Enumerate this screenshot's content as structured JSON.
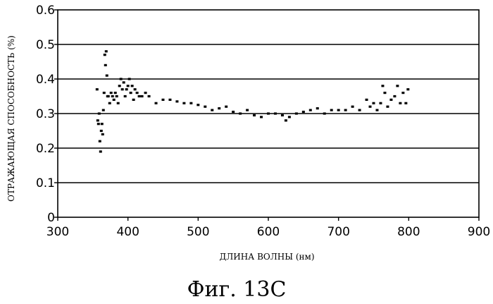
{
  "chart_data": {
    "type": "scatter",
    "caption": "Фиг. 13С",
    "xlabel": "ДЛИНА ВОЛНЫ (нм)",
    "ylabel": "ОТРАЖАЮЩАЯ СПОСОБНОСТЬ (%)",
    "xlim": [
      300,
      900
    ],
    "ylim": [
      0,
      0.6
    ],
    "xticks": [
      "300",
      "400",
      "500",
      "600",
      "700",
      "800",
      "900"
    ],
    "yticks": [
      "0",
      "0.1",
      "0.2",
      "0.3",
      "0.4",
      "0.5",
      "0.6"
    ],
    "grid": "horizontal",
    "series": [
      {
        "x": [
          356,
          357,
          358,
          359,
          360,
          361,
          362,
          363,
          364,
          365,
          366,
          367,
          368,
          369,
          370,
          371,
          372,
          374,
          376,
          378,
          380,
          382,
          384,
          386,
          388,
          390,
          392,
          394,
          396,
          398,
          400,
          402,
          404,
          406,
          408,
          410,
          413,
          416,
          420,
          425,
          430,
          440,
          450,
          460,
          470,
          480,
          490,
          500,
          510,
          520,
          530,
          540,
          550,
          560,
          570,
          580,
          590,
          600,
          610,
          620,
          625,
          630,
          640,
          650,
          660,
          670,
          680,
          690,
          700,
          710,
          720,
          730,
          740,
          745,
          750,
          755,
          760,
          763,
          766,
          770,
          775,
          780,
          784,
          788,
          792,
          796,
          799
        ],
        "y": [
          0.37,
          0.28,
          0.27,
          0.3,
          0.22,
          0.19,
          0.25,
          0.27,
          0.24,
          0.31,
          0.36,
          0.47,
          0.44,
          0.48,
          0.41,
          0.35,
          0.35,
          0.33,
          0.36,
          0.35,
          0.34,
          0.36,
          0.35,
          0.33,
          0.38,
          0.4,
          0.37,
          0.39,
          0.35,
          0.37,
          0.38,
          0.4,
          0.36,
          0.38,
          0.34,
          0.37,
          0.36,
          0.35,
          0.35,
          0.36,
          0.35,
          0.33,
          0.34,
          0.34,
          0.335,
          0.33,
          0.33,
          0.325,
          0.32,
          0.31,
          0.315,
          0.32,
          0.305,
          0.3,
          0.31,
          0.295,
          0.29,
          0.3,
          0.3,
          0.295,
          0.28,
          0.29,
          0.3,
          0.305,
          0.31,
          0.315,
          0.3,
          0.31,
          0.31,
          0.31,
          0.32,
          0.31,
          0.34,
          0.32,
          0.33,
          0.31,
          0.33,
          0.38,
          0.36,
          0.32,
          0.34,
          0.35,
          0.38,
          0.33,
          0.36,
          0.33,
          0.37
        ]
      }
    ]
  }
}
